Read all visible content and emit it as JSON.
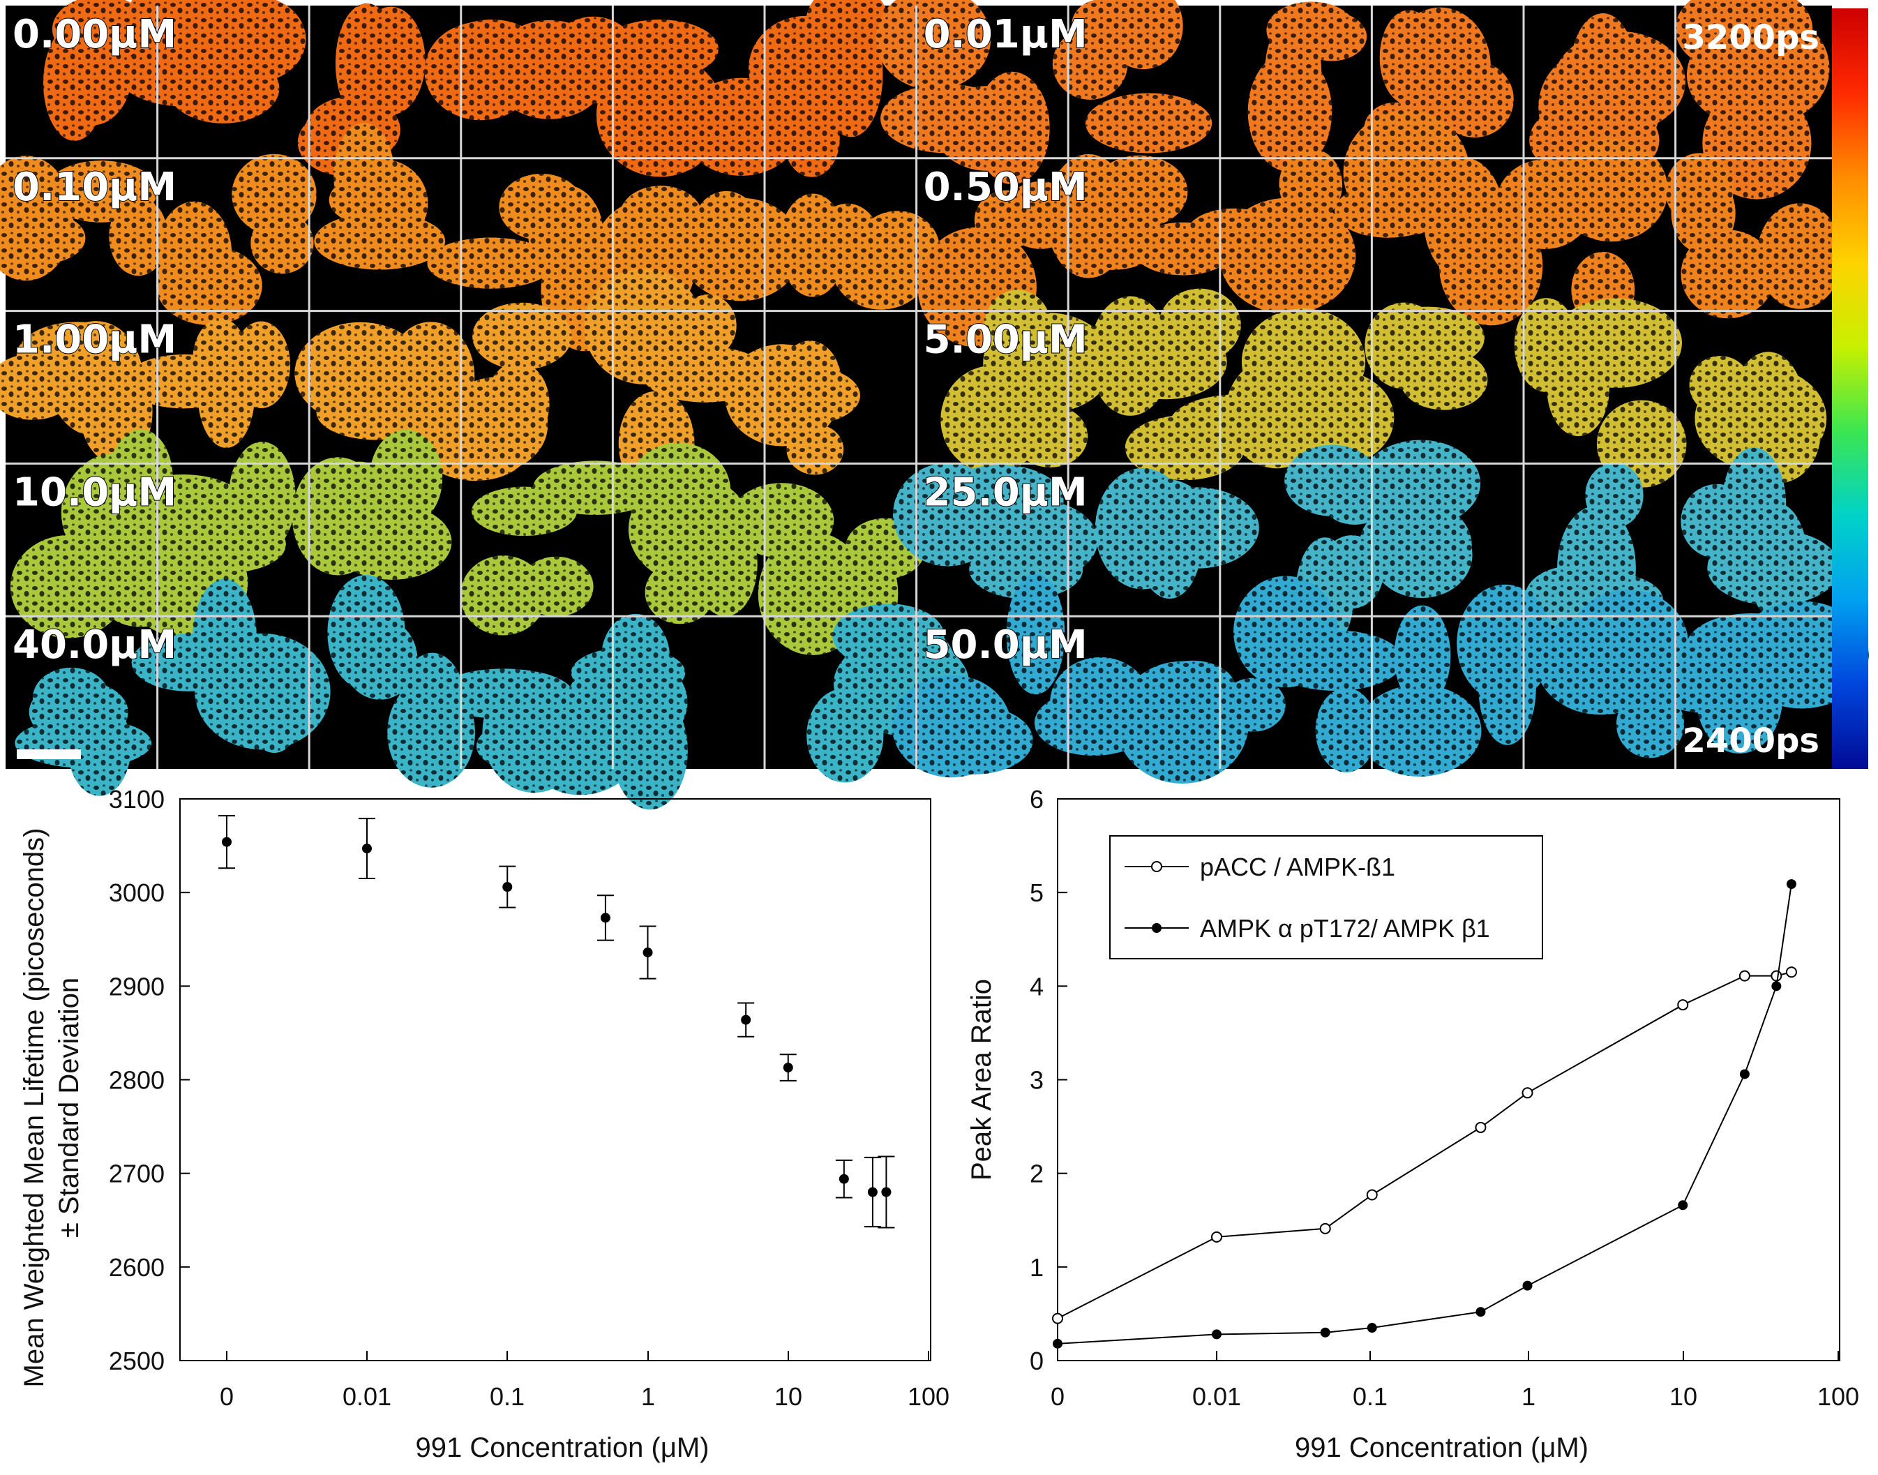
{
  "micrograph": {
    "colorbar_max": "3200ps",
    "colorbar_min": "2400ps",
    "colorbar_colors": [
      "#cc0000",
      "#ff2a00",
      "#ff8c00",
      "#ffd200",
      "#c8f000",
      "#3ce650",
      "#00d2c8",
      "#00a0f0",
      "#0046dc",
      "#000a96"
    ],
    "panels": [
      {
        "label": "0.00μM",
        "color": "#f06a14"
      },
      {
        "label": "0.01μM",
        "color": "#f0781e"
      },
      {
        "label": "0.10μM",
        "color": "#f08c1e"
      },
      {
        "label": "0.50μM",
        "color": "#f0821e"
      },
      {
        "label": "1.00μM",
        "color": "#f0a028"
      },
      {
        "label": "5.00μM",
        "color": "#d2be32"
      },
      {
        "label": "10.0μM",
        "color": "#aac83c"
      },
      {
        "label": "25.0μM",
        "color": "#46b4c8"
      },
      {
        "label": "40.0μM",
        "color": "#3cb4c8"
      },
      {
        "label": "50.0μM",
        "color": "#32aad2"
      }
    ]
  },
  "chart_data": [
    {
      "type": "scatter",
      "title": "",
      "xlabel": "991 Concentration (μM)",
      "ylabel": "Mean Weighted Mean Lifetime (picoseconds)",
      "ylabel2": "± Standard Deviation",
      "xscale": "log-like",
      "xtick_labels": [
        "0",
        "0.01",
        "0.1",
        "1",
        "10",
        "100"
      ],
      "yticks": [
        2500,
        2600,
        2700,
        2800,
        2900,
        3000,
        3100
      ],
      "ylim": [
        2500,
        3100
      ],
      "points": [
        {
          "x": 0,
          "y": 3054,
          "sd": 28
        },
        {
          "x": 0.01,
          "y": 3047,
          "sd": 32
        },
        {
          "x": 0.1,
          "y": 3006,
          "sd": 22
        },
        {
          "x": 0.5,
          "y": 2973,
          "sd": 24
        },
        {
          "x": 1,
          "y": 2936,
          "sd": 28
        },
        {
          "x": 5,
          "y": 2864,
          "sd": 18
        },
        {
          "x": 10,
          "y": 2813,
          "sd": 14
        },
        {
          "x": 25,
          "y": 2694,
          "sd": 20
        },
        {
          "x": 40,
          "y": 2680,
          "sd": 37
        },
        {
          "x": 50,
          "y": 2680,
          "sd": 38
        }
      ]
    },
    {
      "type": "line",
      "title": "",
      "xlabel": "991 Concentration (μM)",
      "ylabel": "Peak Area Ratio",
      "xtick_labels": [
        "0",
        "0.01",
        "0.1",
        "1",
        "10",
        "100"
      ],
      "yticks": [
        0,
        1,
        2,
        3,
        4,
        5,
        6
      ],
      "ylim": [
        0,
        6
      ],
      "legend_position": "top-left",
      "series": [
        {
          "name": "pACC / AMPK-ß1",
          "marker": "open-circle",
          "x": [
            0,
            0.01,
            0.05,
            0.1,
            0.5,
            1,
            10,
            25,
            40,
            50
          ],
          "values": [
            0.45,
            1.32,
            1.41,
            1.77,
            2.49,
            2.86,
            3.8,
            4.11,
            4.11,
            4.15
          ]
        },
        {
          "name": "AMPK α pT172/ AMPK β1",
          "marker": "filled-circle",
          "x": [
            0,
            0.01,
            0.05,
            0.1,
            0.5,
            1,
            10,
            25,
            40,
            50
          ],
          "values": [
            0.18,
            0.28,
            0.3,
            0.35,
            0.52,
            0.8,
            1.66,
            3.06,
            4.0,
            5.09
          ]
        }
      ]
    }
  ]
}
